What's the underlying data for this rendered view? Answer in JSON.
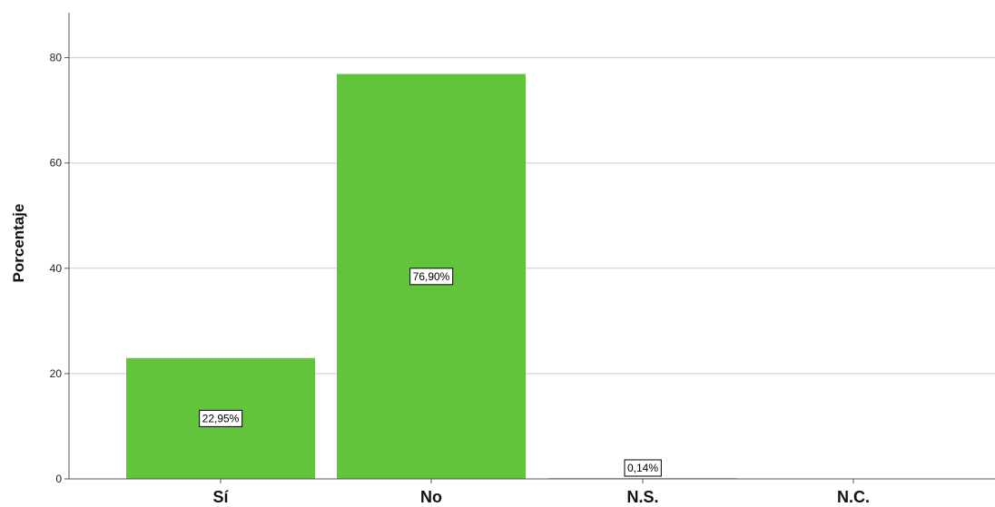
{
  "chart_data": {
    "type": "bar",
    "ylabel": "Porcentaje",
    "xlabel": "",
    "categories": [
      "Sí",
      "No",
      "N.S.",
      "N.C."
    ],
    "values": [
      22.95,
      76.9,
      0.14,
      0
    ],
    "data_labels": [
      "22,95%",
      "76,90%",
      "0,14%",
      ""
    ],
    "ylim": [
      0,
      88
    ],
    "yticks": [
      0,
      20,
      40,
      60,
      80
    ],
    "grid": true,
    "legend": "none",
    "colors": {
      "bar": "#61c43a",
      "grid": "#cccccc",
      "axis": "#555555"
    }
  }
}
